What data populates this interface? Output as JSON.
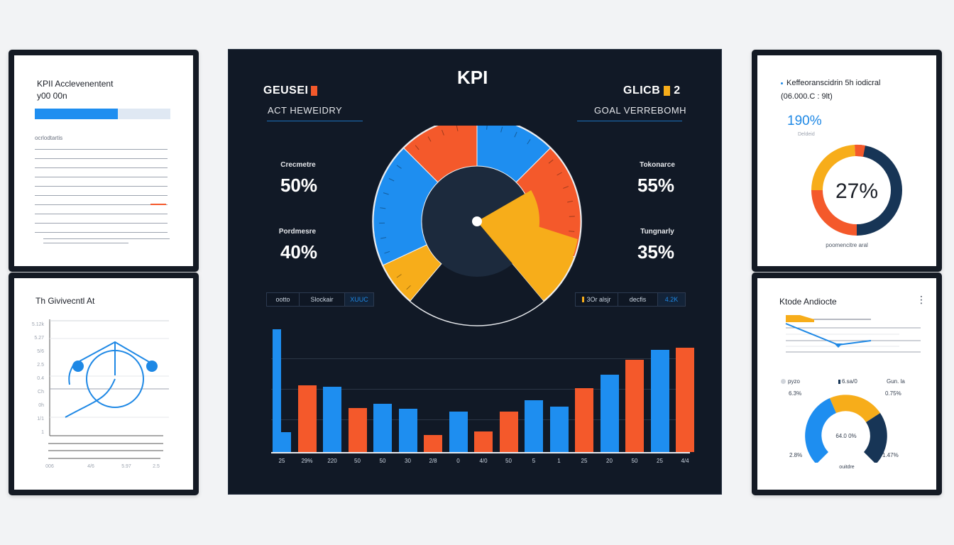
{
  "colors": {
    "blue": "#1e8ef0",
    "orange": "#f4592b",
    "yellow": "#f7ad1a",
    "navy": "#173556",
    "panel_bg": "#111926",
    "card_border": "#141a24"
  },
  "left_top_card": {
    "title_line1": "KPII Acclevenentent",
    "title_line2": "y00 00n",
    "progress_pct": 61,
    "section_label": "ocrlodtartis",
    "lines_count": 10
  },
  "left_bottom_card": {
    "title": "Th Givivecntl At",
    "y_ticks": [
      "5.12k",
      "5.27",
      "5/6",
      "2.5",
      "0.4",
      "Ch",
      "0h",
      "1/1",
      "1"
    ],
    "x_ticks": [
      "006",
      "4/6",
      "5.97",
      "2.5"
    ]
  },
  "center_panel": {
    "title": "KPI",
    "left_header": {
      "title": "GEUSEI",
      "subtitle": "ACT HEWEIDRY",
      "accent": "#f4592b"
    },
    "right_header": {
      "title": "GLICB",
      "badge": "2",
      "subtitle": "GOAL VERREBOMH",
      "accent": "#f7ad1a"
    },
    "stats_left": [
      {
        "label": "Crecmetre",
        "value": "50%"
      },
      {
        "label": "Pordmesre",
        "value": "40%"
      }
    ],
    "stats_right": [
      {
        "label": "Tokonarce",
        "value": "55%"
      },
      {
        "label": "Tungnarly",
        "value": "35%"
      }
    ],
    "seg_left": [
      "ootto",
      "Slockair",
      "XUUC"
    ],
    "seg_right": [
      "3Or alsjr",
      "decfis",
      "4.2K"
    ],
    "gauge": {
      "segments": [
        {
          "color": "orange",
          "from": -45,
          "to": 0
        },
        {
          "color": "blue",
          "from": 0,
          "to": 45
        },
        {
          "color": "orange",
          "from": 45,
          "to": 110
        },
        {
          "color": "yellow",
          "from": 110,
          "to": 140
        },
        {
          "color": "yellow",
          "from": 220,
          "to": 245
        },
        {
          "color": "blue",
          "from": 245,
          "to": 315
        }
      ]
    }
  },
  "chart_data": [
    {
      "type": "bar",
      "title": "KPI bar series",
      "categories": [
        "25",
        "29%",
        "220",
        "50",
        "50",
        "30",
        "2/8",
        "0",
        "4/0",
        "50",
        "5",
        "1",
        "25",
        "20",
        "50",
        "25",
        "4/4"
      ],
      "series": [
        {
          "name": "blue",
          "values": [
            100,
            null,
            53,
            null,
            39,
            35,
            null,
            33,
            null,
            null,
            42,
            37,
            null,
            63,
            null,
            83,
            null
          ]
        },
        {
          "name": "orange",
          "values": [
            null,
            54,
            null,
            36,
            null,
            null,
            14,
            null,
            17,
            33,
            null,
            null,
            52,
            null,
            75,
            null,
            85
          ]
        }
      ],
      "notes": "First blue bar steps from 100 to 16 (L-shaped).",
      "ylim": [
        0,
        100
      ],
      "grid": true
    },
    {
      "type": "pie",
      "title": "Keffeoranscidrin 5h iodicral",
      "subtitle": "(06.000.C : 9lt)",
      "headline": "190%",
      "headline_label": "Deldeid",
      "center_label": "27%",
      "footer": "poomencitre aral",
      "slices": [
        {
          "color": "navy",
          "value": 50
        },
        {
          "color": "orange",
          "value": 25
        },
        {
          "color": "yellow",
          "value": 22
        },
        {
          "color": "orange-small",
          "value": 3
        }
      ]
    },
    {
      "type": "gauge",
      "title": "Ktode Andiocte",
      "legend": [
        "pyzo",
        "6.sa/0",
        "Gun. la"
      ],
      "values_top": [
        "6.3%",
        "0.75%"
      ],
      "values_bottom": [
        "2.8%",
        "1.47%"
      ],
      "center_label": "64.0 0%",
      "footer": "ouitdre",
      "segments": [
        {
          "color": "blue",
          "value": 35
        },
        {
          "color": "yellow",
          "value": 40
        },
        {
          "color": "navy",
          "value": 25
        }
      ]
    }
  ],
  "right_bottom_menu_icon": "more-vert-icon"
}
